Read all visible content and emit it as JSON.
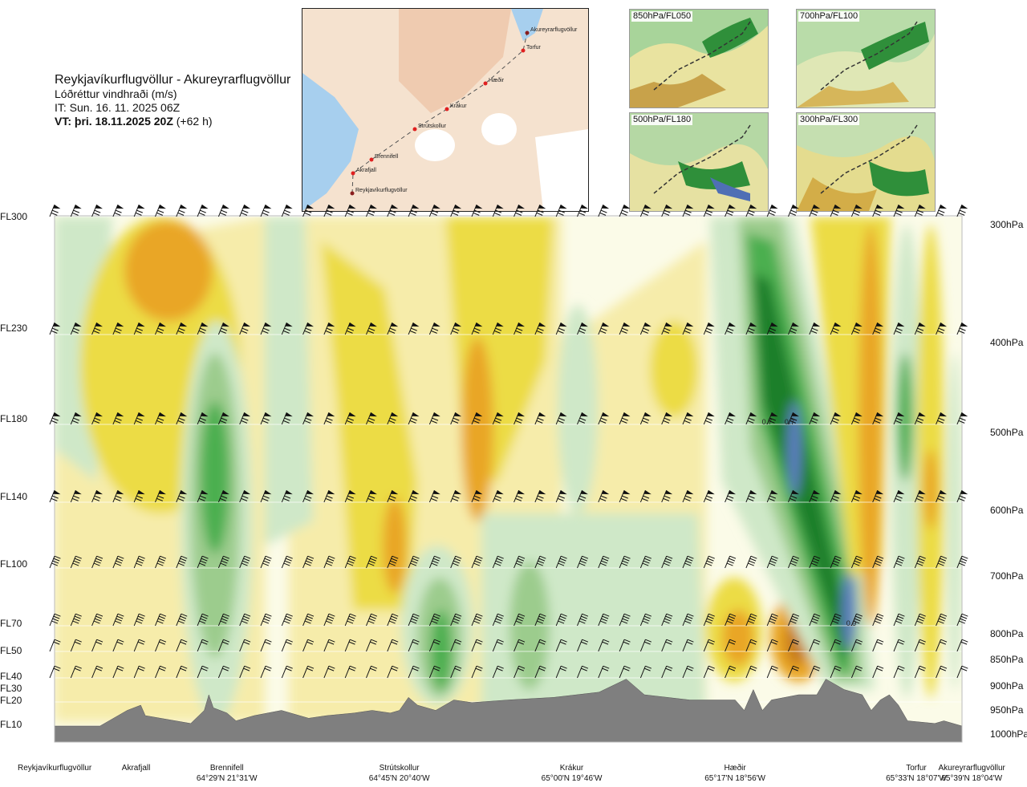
{
  "title": "Reykjavíkurflugvöllur - Akureyrarflugvöllur",
  "subtitle": "Lóðréttur vindhraði (m/s)",
  "issue_time": "IT: Sun. 16. 11. 2025 06Z",
  "valid_time_bold": "VT: þri. 18.11.2025 20Z",
  "valid_time_offset": " (+62 h)",
  "map": {
    "route_points": [
      {
        "name": "Reykjavíkurflugvöllur"
      },
      {
        "name": "Akrafjall"
      },
      {
        "name": "Brennifell"
      },
      {
        "name": "Strútskollur"
      },
      {
        "name": "Krákur"
      },
      {
        "name": "Hæðir"
      },
      {
        "name": "Torfur"
      },
      {
        "name": "Akureyrarflugvöllur"
      }
    ]
  },
  "thumbnails": [
    {
      "label": "850hPa/FL050"
    },
    {
      "label": "700hPa/FL100"
    },
    {
      "label": "500hPa/FL180"
    },
    {
      "label": "300hPa/FL300"
    }
  ],
  "colors": {
    "strong_down_orange": "#e9a628",
    "down_yellow": "#ecdc45",
    "light_yellow": "#f6ecaa",
    "neutral": "#fbfbe8",
    "light_green": "#cfe8c8",
    "mid_green": "#9ccc8d",
    "green": "#4caf50",
    "dark_green": "#1f7f2c",
    "blue": "#5b7dbf",
    "terrain": "#7f7f7f"
  },
  "chart_data": {
    "type": "heatmap",
    "variable": "Lóðréttur vindhraði (m/s)",
    "flight_levels": [
      {
        "label": "FL300",
        "value": 300
      },
      {
        "label": "FL230",
        "value": 230
      },
      {
        "label": "FL180",
        "value": 180
      },
      {
        "label": "FL140",
        "value": 140
      },
      {
        "label": "FL100",
        "value": 100
      },
      {
        "label": "FL70",
        "value": 70
      },
      {
        "label": "FL50",
        "value": 50
      },
      {
        "label": "FL40",
        "value": 40
      },
      {
        "label": "FL30",
        "value": 30
      },
      {
        "label": "FL20",
        "value": 20
      },
      {
        "label": "FL10",
        "value": 10
      }
    ],
    "pressure_levels": [
      {
        "label": "300hPa",
        "value": 300
      },
      {
        "label": "400hPa",
        "value": 400
      },
      {
        "label": "500hPa",
        "value": 500
      },
      {
        "label": "600hPa",
        "value": 600
      },
      {
        "label": "700hPa",
        "value": 700
      },
      {
        "label": "800hPa",
        "value": 800
      },
      {
        "label": "850hPa",
        "value": 850
      },
      {
        "label": "900hPa",
        "value": 900
      },
      {
        "label": "950hPa",
        "value": 950
      },
      {
        "label": "1000hPa",
        "value": 1000
      }
    ],
    "locations": [
      {
        "name": "Reykjavíkurflugvöllur",
        "coord": "",
        "pos": 0.0
      },
      {
        "name": "Akrafjall",
        "coord": "",
        "pos": 0.09
      },
      {
        "name": "Brennifell",
        "coord": "64°29'N 21°31'W",
        "pos": 0.19
      },
      {
        "name": "Strútskollur",
        "coord": "64°45'N 20°40'W",
        "pos": 0.38
      },
      {
        "name": "Krákur",
        "coord": "65°00'N 19°46'W",
        "pos": 0.57
      },
      {
        "name": "Hæðir",
        "coord": "65°17'N 18°56'W",
        "pos": 0.75
      },
      {
        "name": "Torfur",
        "coord": "65°33'N 18°07'W",
        "pos": 0.955
      },
      {
        "name": "Akureyrarflugvöllur",
        "coord": "65°39'N 18°04'W",
        "pos": 1.0
      }
    ],
    "annotations": [
      {
        "text": "0.7",
        "pos": 0.785,
        "level_hpa": 500
      },
      {
        "text": "0.7",
        "pos": 0.81,
        "level_hpa": 500
      },
      {
        "text": "0.9",
        "pos": 0.878,
        "level_hpa": 800
      }
    ],
    "wind_barb_levels_hpa": [
      300,
      400,
      500,
      600,
      700,
      800,
      850,
      900
    ]
  }
}
